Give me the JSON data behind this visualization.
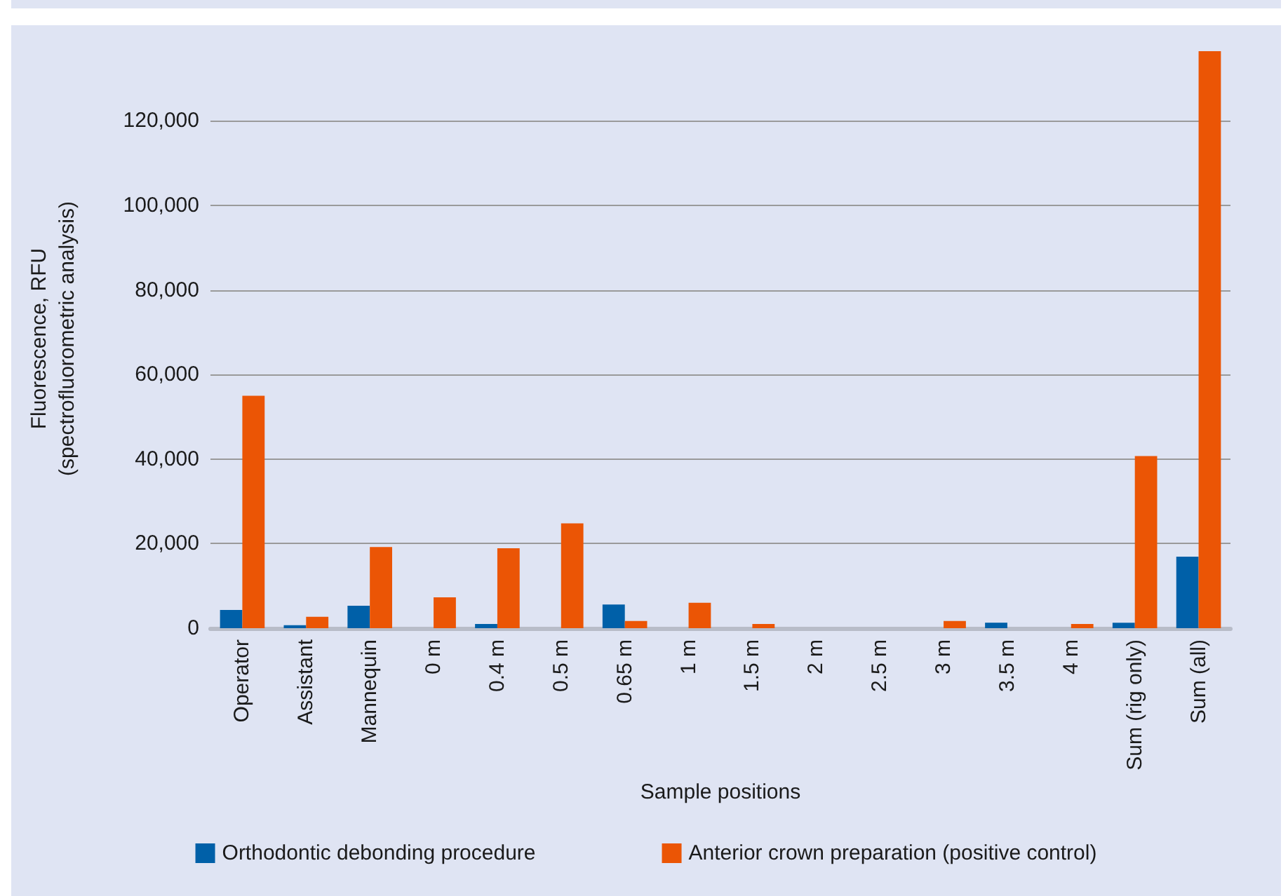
{
  "chart_data": {
    "type": "bar",
    "xlabel": "Sample positions",
    "ylabel": "Fluorescence, RFU\n(spectrofluorometric analysis)",
    "categories": [
      "Operator",
      "Assistant",
      "Mannequin",
      "0 m",
      "0.4 m",
      "0.5 m",
      "0.65 m",
      "1 m",
      "1.5 m",
      "2 m",
      "2.5 m",
      "3 m",
      "3.5 m",
      "4 m",
      "Sum (rig only)",
      "Sum (all)"
    ],
    "series": [
      {
        "name": "Orthodontic debonding procedure",
        "color": "#0060a8",
        "values": [
          4300,
          700,
          5300,
          0,
          1000,
          0,
          5600,
          0,
          0,
          0,
          0,
          0,
          1300,
          0,
          1300,
          16900
        ]
      },
      {
        "name": "Anterior crown preparation (positive control)",
        "color": "#eb5505",
        "values": [
          55000,
          2700,
          19200,
          7300,
          18900,
          24800,
          1700,
          6000,
          1000,
          0,
          0,
          1700,
          0,
          1000,
          40700,
          136500
        ]
      }
    ],
    "ylim": [
      0,
      137000
    ],
    "yticks": [
      {
        "value": 0,
        "label": "0"
      },
      {
        "value": 20000,
        "label": "20,000"
      },
      {
        "value": 40000,
        "label": "40,000"
      },
      {
        "value": 60000,
        "label": "60,000"
      },
      {
        "value": 80000,
        "label": "80,000"
      },
      {
        "value": 100000,
        "label": "100,000"
      },
      {
        "value": 120000,
        "label": "120,000"
      }
    ],
    "grid": "y",
    "legend": "bottom"
  }
}
